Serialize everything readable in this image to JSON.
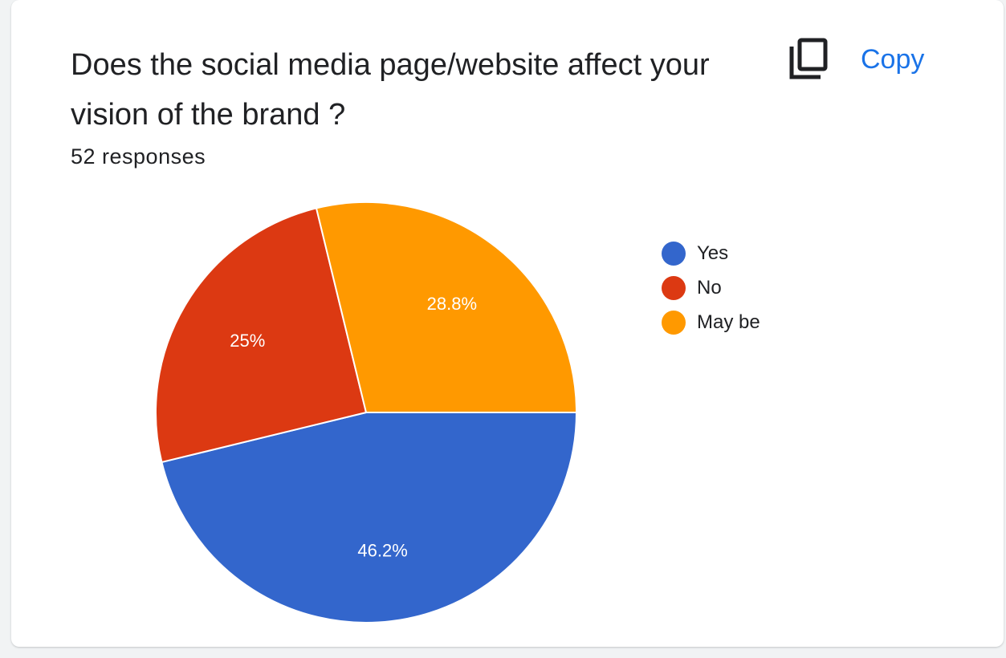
{
  "card": {
    "title": "Does the social media page/website affect your vision of the brand ?",
    "responses": "52 responses",
    "copy_label": "Copy",
    "copy_icon": "copy-icon"
  },
  "chart_data": {
    "type": "pie",
    "categories": [
      "Yes",
      "No",
      "May be"
    ],
    "values": [
      46.2,
      25,
      28.8
    ],
    "labels": [
      "46.2%",
      "25%",
      "28.8%"
    ],
    "colors": [
      "#3366cc",
      "#dc3912",
      "#ff9900"
    ],
    "legend_position": "right"
  }
}
